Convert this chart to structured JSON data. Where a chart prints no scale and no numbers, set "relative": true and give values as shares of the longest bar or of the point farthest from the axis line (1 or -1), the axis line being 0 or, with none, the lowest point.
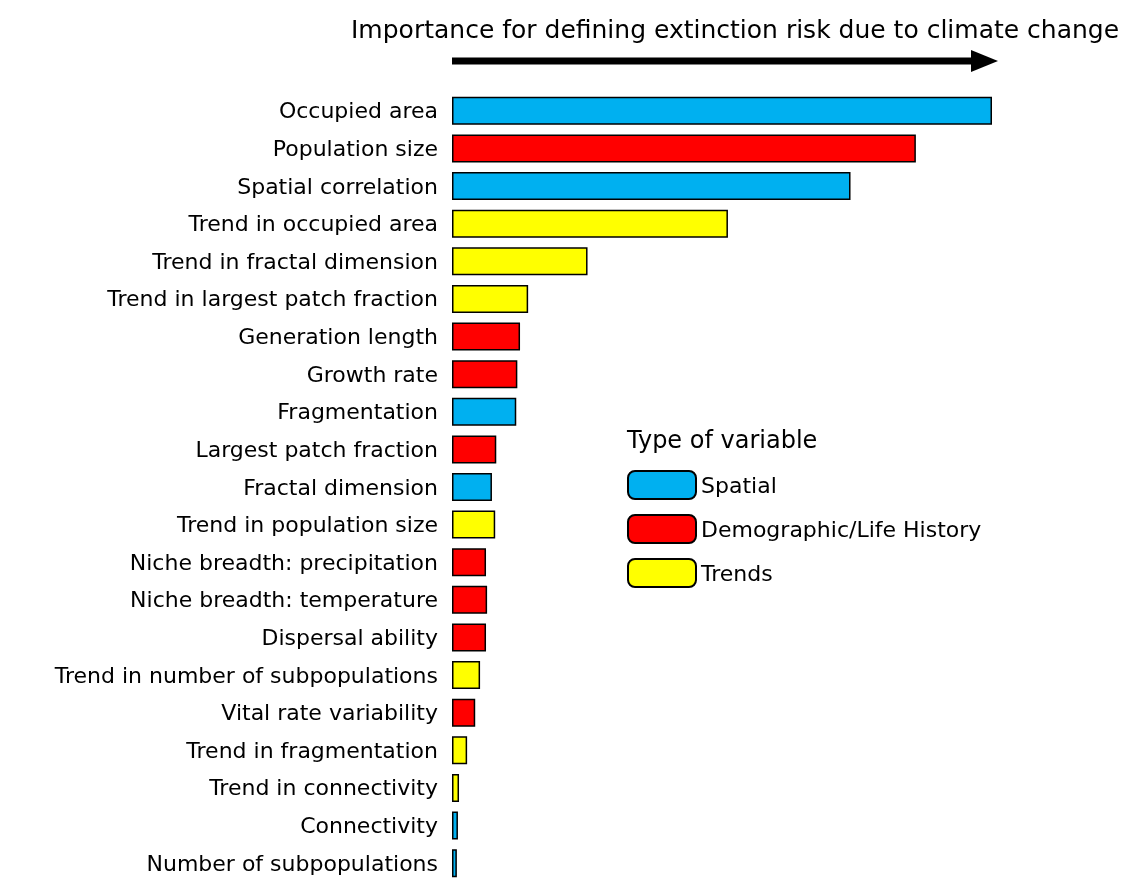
{
  "chart_data": {
    "type": "bar",
    "orientation": "horizontal",
    "relative": true,
    "legend": "right",
    "legend_title": "Type of variable",
    "title": "Importance for defining extinction risk due to climate change",
    "categories": [
      "Occupied area",
      "Population size",
      "Spatial correlation",
      "Trend in occupied area",
      "Trend in fractal dimension",
      "Trend in largest patch fraction",
      "Generation length",
      "Growth rate",
      "Fragmentation",
      "Largest patch fraction",
      "Fractal dimension",
      "Trend in population size",
      "Niche breadth: precipitation",
      "Niche breadth: temperature",
      "Dispersal ability",
      "Trend in number of subpopulations",
      "Vital rate variability",
      "Trend in fragmentation",
      "Trend in connectivity",
      "Connectivity",
      "Number of subpopulations"
    ],
    "series": [
      {
        "name": "Spatial",
        "color": "#00b0f0",
        "values": [
          1,
          null,
          0.738,
          null,
          null,
          null,
          null,
          null,
          0.119,
          null,
          0.074,
          null,
          null,
          null,
          null,
          null,
          null,
          null,
          null,
          0.011,
          0.009
        ]
      },
      {
        "name": "Demographic/Life History",
        "color": "#ff0000",
        "values": [
          null,
          0.859,
          null,
          null,
          null,
          null,
          0.126,
          0.121,
          null,
          0.082,
          null,
          null,
          0.063,
          0.065,
          0.063,
          null,
          0.043,
          null,
          null,
          null,
          null
        ]
      },
      {
        "name": "Trends",
        "color": "#ffff00",
        "values": [
          null,
          null,
          null,
          0.511,
          0.251,
          0.141,
          null,
          null,
          null,
          null,
          null,
          0.08,
          null,
          null,
          null,
          0.052,
          null,
          0.028,
          0.013,
          null,
          null
        ]
      }
    ]
  }
}
